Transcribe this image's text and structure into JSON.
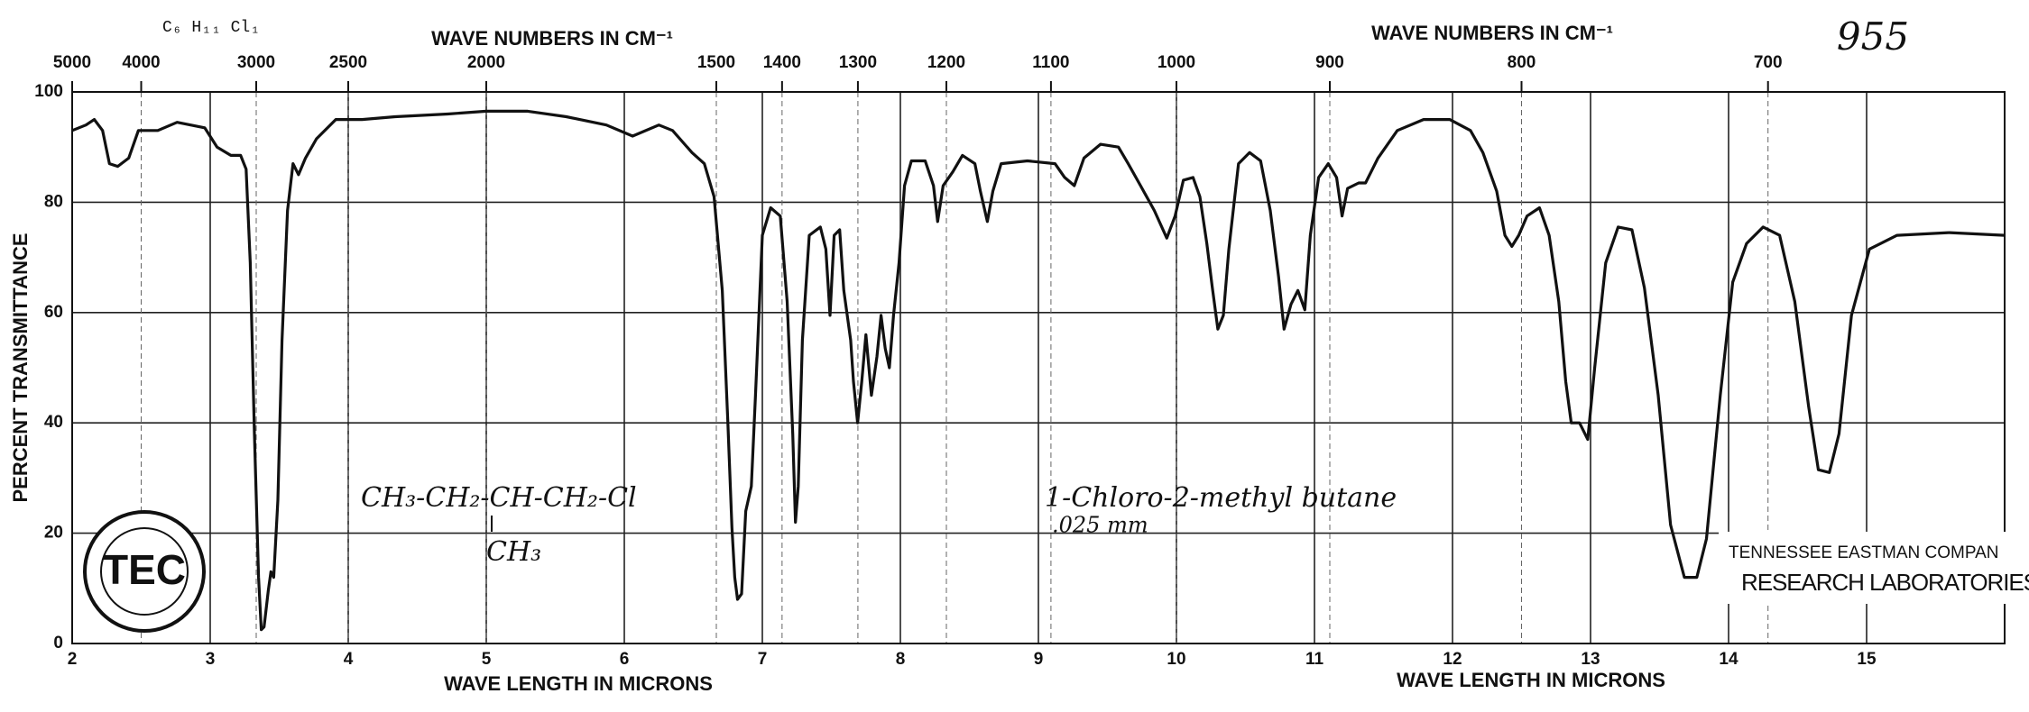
{
  "chart_data": {
    "type": "line",
    "xlabel": "WAVE LENGTH IN MICRONS",
    "xlabel2": "WAVE LENGTH IN MICRONS",
    "x2label": "WAVE NUMBERS IN CM⁻¹",
    "x2label2": "WAVE NUMBERS IN CM⁻¹",
    "ylabel": "PERCENT TRANSMITTANCE",
    "color": "#111111",
    "grid": true,
    "xlim": [
      2,
      16
    ],
    "xticks": [
      2,
      3,
      4,
      5,
      6,
      7,
      8,
      9,
      10,
      11,
      12,
      13,
      14,
      15
    ],
    "x2ticks": [
      5000,
      4000,
      3000,
      2500,
      2000,
      1500,
      1400,
      1300,
      1200,
      1100,
      1000,
      900,
      800,
      700
    ],
    "ylim": [
      0,
      100
    ],
    "yticks": [
      0,
      20,
      40,
      60,
      80,
      100
    ],
    "annotations": {
      "number": "955",
      "formula": "C₆ H₁₁ Cl₁",
      "structure": "CH₃-CH₂-CH-CH₂-Cl",
      "branch": "CH₃",
      "name": "1-Chloro-2-methyl butane",
      "thickness": ".025 mm",
      "company": "TENNESSEE EASTMAN COMPAN",
      "lab": "RESEARCH LABORATORIES",
      "logo": "TEC"
    },
    "x": [
      2.0,
      2.1,
      2.16,
      2.22,
      2.27,
      2.33,
      2.41,
      2.48,
      2.62,
      2.76,
      2.96,
      3.05,
      3.15,
      3.22,
      3.26,
      3.29,
      3.32,
      3.35,
      3.37,
      3.39,
      3.42,
      3.44,
      3.46,
      3.49,
      3.52,
      3.56,
      3.6,
      3.64,
      3.69,
      3.77,
      3.91,
      4.1,
      4.34,
      4.72,
      5.0,
      5.3,
      5.58,
      5.87,
      6.06,
      6.25,
      6.35,
      6.49,
      6.58,
      6.65,
      6.71,
      6.75,
      6.78,
      6.8,
      6.82,
      6.85,
      6.88,
      6.92,
      6.95,
      7.0,
      7.06,
      7.13,
      7.18,
      7.22,
      7.24,
      7.26,
      7.29,
      7.34,
      7.42,
      7.46,
      7.49,
      7.52,
      7.56,
      7.59,
      7.64,
      7.66,
      7.69,
      7.72,
      7.75,
      7.79,
      7.83,
      7.86,
      7.89,
      7.92,
      7.95,
      7.99,
      8.03,
      8.08,
      8.18,
      8.24,
      8.27,
      8.31,
      8.38,
      8.45,
      8.54,
      8.58,
      8.63,
      8.67,
      8.73,
      8.92,
      9.12,
      9.19,
      9.26,
      9.33,
      9.45,
      9.58,
      9.65,
      9.74,
      9.84,
      9.93,
      9.99,
      10.05,
      10.12,
      10.17,
      10.22,
      10.26,
      10.3,
      10.34,
      10.38,
      10.45,
      10.53,
      10.61,
      10.68,
      10.74,
      10.78,
      10.83,
      10.88,
      10.93,
      10.97,
      11.03,
      11.1,
      11.16,
      11.2,
      11.24,
      11.32,
      11.37,
      11.46,
      11.6,
      11.79,
      11.98,
      12.13,
      12.22,
      12.32,
      12.38,
      12.43,
      12.48,
      12.54,
      12.63,
      12.7,
      12.77,
      12.82,
      12.86,
      12.92,
      12.98,
      13.03,
      13.11,
      13.2,
      13.3,
      13.39,
      13.49,
      13.58,
      13.68,
      13.77,
      13.84,
      13.94,
      14.03,
      14.13,
      14.25,
      14.37,
      14.48,
      14.58,
      14.65,
      14.73,
      14.8,
      14.89,
      15.02,
      15.22,
      15.6,
      16.0
    ],
    "values": [
      93,
      94,
      95,
      93,
      87,
      86.5,
      88,
      93,
      93,
      94.5,
      93.5,
      90,
      88.5,
      88.5,
      86,
      69,
      38,
      12,
      2.5,
      3,
      9.5,
      13,
      12,
      26,
      55,
      78.5,
      87,
      85,
      88,
      91.5,
      95,
      95,
      95.5,
      96,
      96.5,
      96.5,
      95.5,
      94,
      92,
      94,
      93,
      89,
      87,
      81,
      64,
      40,
      21,
      12,
      8,
      9,
      24,
      28.5,
      45,
      74,
      79,
      77.5,
      62,
      38,
      22,
      28.5,
      55,
      74,
      75.5,
      71.5,
      59.5,
      74,
      75,
      64,
      55,
      47.5,
      40,
      47.5,
      56,
      45,
      52,
      59.5,
      53.5,
      50,
      59.5,
      69,
      83,
      87.5,
      87.5,
      83,
      76.5,
      83,
      85.5,
      88.5,
      87,
      82,
      76.5,
      82,
      87,
      87.5,
      87,
      84.5,
      83,
      88,
      90.5,
      90,
      87,
      83,
      78.5,
      73.5,
      77.5,
      84,
      84.5,
      81,
      72.5,
      64.5,
      57,
      59.5,
      71.5,
      87,
      89,
      87.5,
      78.5,
      66.5,
      57,
      61.5,
      64,
      60.5,
      74,
      84.5,
      87,
      84.5,
      77.5,
      82.5,
      83.5,
      83.5,
      88,
      93,
      95,
      95,
      93,
      89,
      82,
      74,
      72,
      74,
      77.5,
      79,
      74,
      62,
      47.5,
      40,
      40,
      37,
      50,
      69,
      75.5,
      75,
      64.5,
      45,
      21.5,
      12,
      12,
      19,
      45,
      65.5,
      72.5,
      75.5,
      74,
      62,
      43,
      31.5,
      31,
      38,
      59.5,
      71.5,
      74,
      74.5,
      74
    ]
  }
}
